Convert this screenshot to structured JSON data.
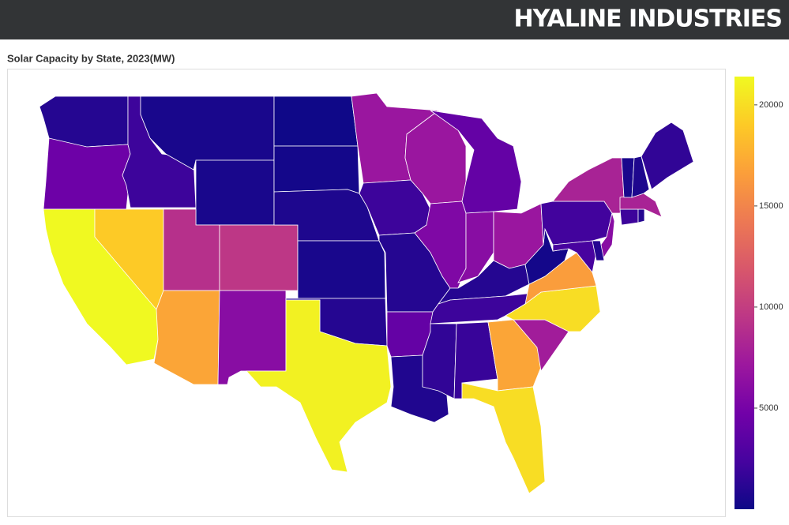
{
  "header": {
    "brand": "HYALINE INDUSTRIES"
  },
  "chart_data": {
    "type": "choropleth",
    "title": "Solar Capacity by State, 2023(MW)",
    "values": [
      1000,
      4500,
      21400,
      19000,
      2000,
      500,
      500,
      9000,
      9500,
      17000,
      6000,
      100,
      300,
      700,
      500,
      1000,
      21000,
      7000,
      2000,
      1000,
      4000,
      800,
      7000,
      5500,
      4000,
      6000,
      7000,
      1000,
      2000,
      1500,
      1800,
      17000,
      20000,
      7500,
      20000,
      16500,
      300,
      2200,
      8000,
      6000,
      2500,
      1000,
      2000,
      1000,
      8000,
      500,
      700,
      1500
    ],
    "zlim": [
      0,
      21400
    ],
    "zticks": [
      5000,
      10000,
      15000,
      20000
    ],
    "colorscale": [
      "#0d0887",
      "#46039f",
      "#7201a8",
      "#9c179e",
      "#bd3786",
      "#d8576b",
      "#ed7953",
      "#fb9f3a",
      "#fdca26",
      "#f0f921"
    ],
    "border_color": "#ffffff"
  }
}
